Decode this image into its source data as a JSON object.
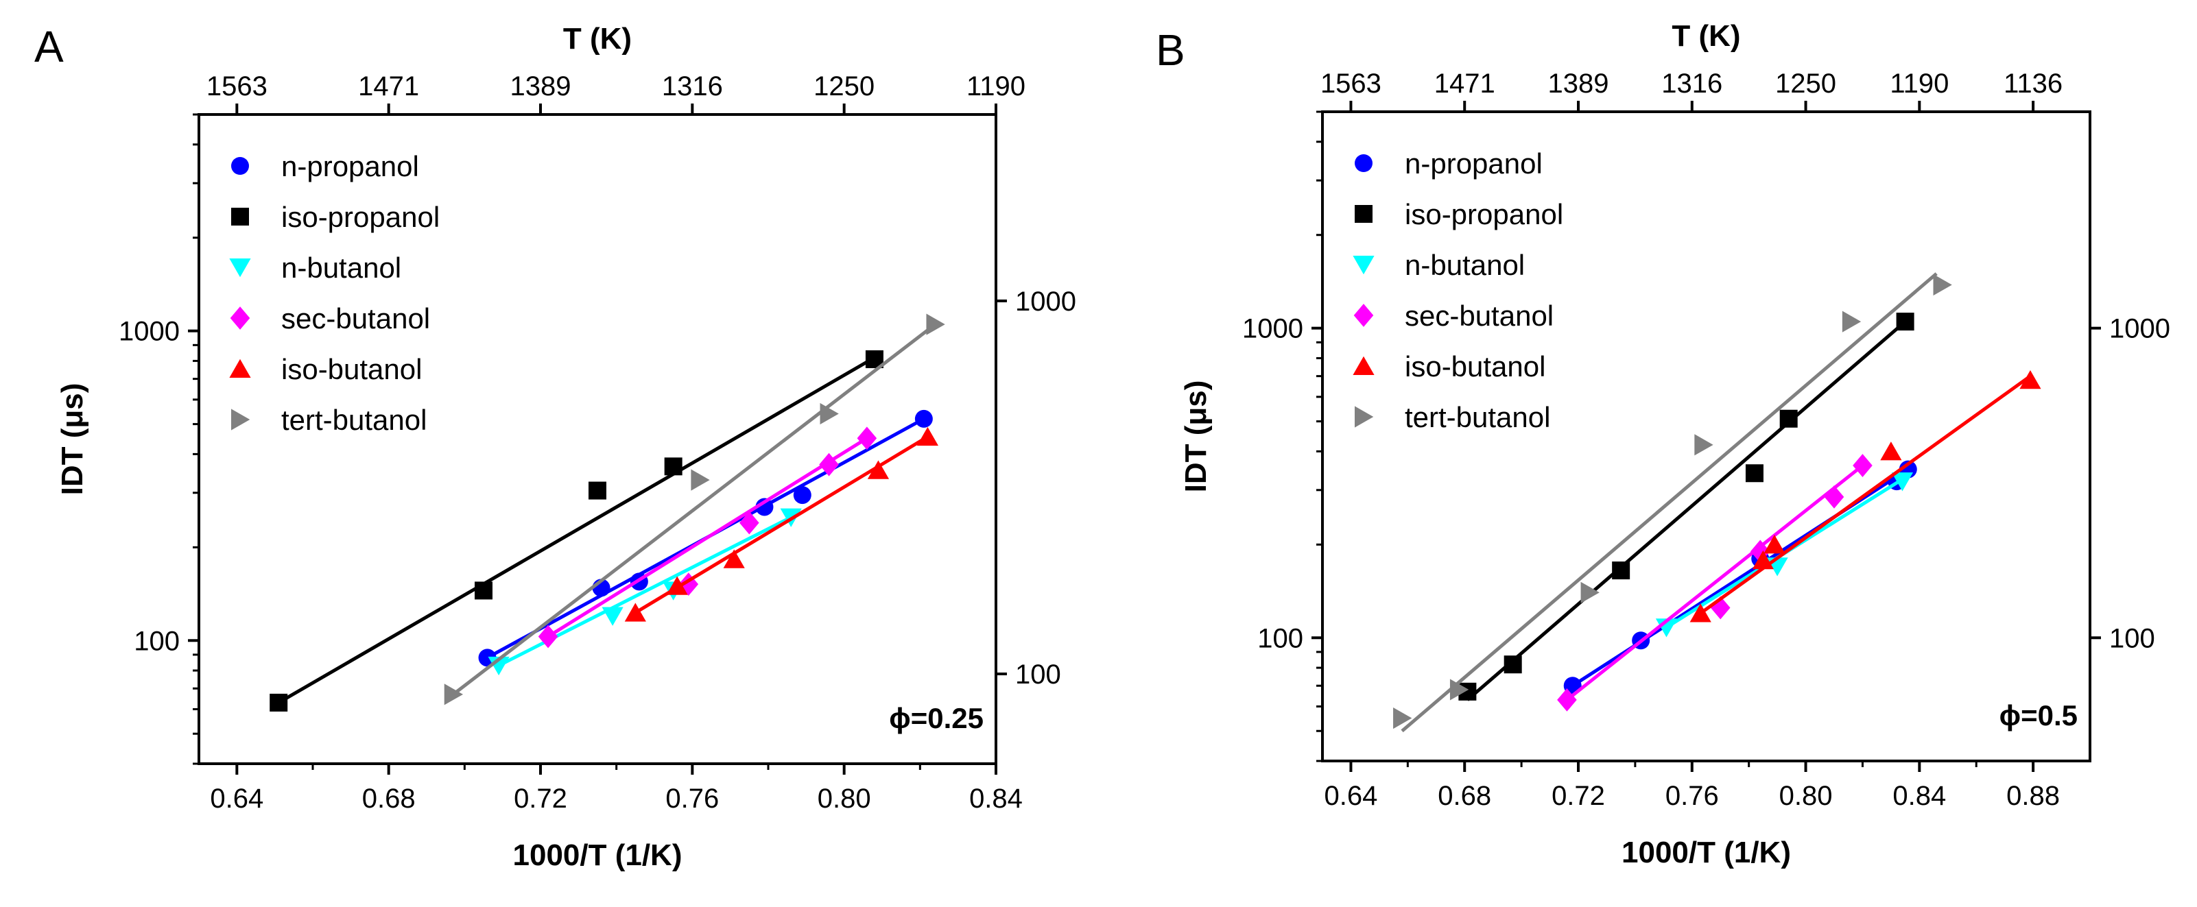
{
  "colors": {
    "n-propanol": "#0000ff",
    "iso-propanol": "#000000",
    "n-butanol": "#00ffff",
    "sec-butanol": "#ff00ff",
    "iso-butanol": "#ff0000",
    "tert-butanol": "#808080"
  },
  "chart_data": [
    {
      "type": "scatter",
      "panel_label": "A",
      "phi_label": "ϕ=0.25",
      "xlabel": "1000/T (1/K)",
      "ylabel": "IDT (μs)",
      "top_xlabel": "T (K)",
      "xlim": [
        0.63,
        0.84
      ],
      "ylim": [
        40,
        5000
      ],
      "yscale": "log",
      "x_ticks": [
        "0.64",
        "0.68",
        "0.72",
        "0.76",
        "0.80",
        "0.84"
      ],
      "x_tick_values": [
        0.64,
        0.68,
        0.72,
        0.76,
        0.8,
        0.84
      ],
      "y_ticks": [
        "100",
        "1000"
      ],
      "y_tick_values": [
        100,
        1000
      ],
      "top_ticks": [
        "1563",
        "1471",
        "1389",
        "1316",
        "1250",
        "1190"
      ],
      "top_tick_values": [
        0.64,
        0.68,
        0.72,
        0.76,
        0.8,
        0.84
      ],
      "right_ticks": [
        "100",
        "1000"
      ],
      "right_tick_values": [
        78,
        1250
      ],
      "legend_position": "top-left",
      "series": [
        {
          "name": "n-propanol",
          "marker": "circle",
          "x": [
            0.706,
            0.736,
            0.746,
            0.779,
            0.789,
            0.821
          ],
          "y": [
            88,
            148,
            155,
            270,
            295,
            520
          ],
          "fit": [
            [
              0.706,
              88
            ],
            [
              0.821,
              520
            ]
          ]
        },
        {
          "name": "iso-propanol",
          "marker": "square",
          "x": [
            0.651,
            0.705,
            0.735,
            0.755,
            0.808
          ],
          "y": [
            63,
            145,
            305,
            365,
            810
          ],
          "fit": [
            [
              0.651,
              63
            ],
            [
              0.808,
              820
            ]
          ]
        },
        {
          "name": "n-butanol",
          "marker": "triangle-down",
          "x": [
            0.709,
            0.739,
            0.755,
            0.786
          ],
          "y": [
            83,
            120,
            145,
            250
          ],
          "fit": [
            [
              0.709,
              83
            ],
            [
              0.786,
              250
            ]
          ]
        },
        {
          "name": "sec-butanol",
          "marker": "diamond",
          "x": [
            0.722,
            0.759,
            0.775,
            0.796,
            0.806
          ],
          "y": [
            103,
            152,
            240,
            370,
            450
          ],
          "fit": [
            [
              0.722,
              103
            ],
            [
              0.806,
              450
            ]
          ]
        },
        {
          "name": "iso-butanol",
          "marker": "triangle-up",
          "x": [
            0.745,
            0.756,
            0.771,
            0.809,
            0.822
          ],
          "y": [
            123,
            150,
            183,
            355,
            455
          ],
          "fit": [
            [
              0.745,
              123
            ],
            [
              0.822,
              455
            ]
          ]
        },
        {
          "name": "tert-butanol",
          "marker": "triangle-right",
          "x": [
            0.697,
            0.762,
            0.796,
            0.824
          ],
          "y": [
            67,
            330,
            540,
            1050
          ],
          "fit": [
            [
              0.697,
              67
            ],
            [
              0.824,
              1050
            ]
          ]
        }
      ]
    },
    {
      "type": "scatter",
      "panel_label": "B",
      "phi_label": "ϕ=0.5",
      "xlabel": "1000/T (1/K)",
      "ylabel": "IDT (μs)",
      "top_xlabel": "T (K)",
      "xlim": [
        0.63,
        0.9
      ],
      "ylim": [
        40,
        5000
      ],
      "yscale": "log",
      "x_ticks": [
        "0.64",
        "0.68",
        "0.72",
        "0.76",
        "0.80",
        "0.84",
        "0.88"
      ],
      "x_tick_values": [
        0.64,
        0.68,
        0.72,
        0.76,
        0.8,
        0.84,
        0.88
      ],
      "y_ticks": [
        "100",
        "1000"
      ],
      "y_tick_values": [
        100,
        1000
      ],
      "top_ticks": [
        "1563",
        "1471",
        "1389",
        "1316",
        "1250",
        "1190",
        "1136"
      ],
      "top_tick_values": [
        0.64,
        0.68,
        0.72,
        0.76,
        0.8,
        0.84,
        0.88
      ],
      "right_ticks": [
        "100",
        "1000"
      ],
      "right_tick_values": [
        100,
        1000
      ],
      "legend_position": "top-left",
      "series": [
        {
          "name": "n-propanol",
          "marker": "circle",
          "x": [
            0.718,
            0.742,
            0.784,
            0.832,
            0.836
          ],
          "y": [
            70,
            98,
            180,
            320,
            350
          ],
          "fit": [
            [
              0.718,
              70
            ],
            [
              0.836,
              350
            ]
          ]
        },
        {
          "name": "iso-propanol",
          "marker": "square",
          "x": [
            0.681,
            0.697,
            0.735,
            0.782,
            0.794,
            0.835
          ],
          "y": [
            67,
            82,
            165,
            340,
            510,
            1050
          ],
          "fit": [
            [
              0.681,
              63
            ],
            [
              0.835,
              1050
            ]
          ]
        },
        {
          "name": "n-butanol",
          "marker": "triangle-down",
          "x": [
            0.751,
            0.79,
            0.834
          ],
          "y": [
            108,
            170,
            320
          ],
          "fit": [
            [
              0.751,
              108
            ],
            [
              0.834,
              325
            ]
          ]
        },
        {
          "name": "sec-butanol",
          "marker": "diamond",
          "x": [
            0.716,
            0.77,
            0.784,
            0.81,
            0.82
          ],
          "y": [
            63,
            125,
            190,
            285,
            360
          ],
          "fit": [
            [
              0.716,
              63
            ],
            [
              0.82,
              360
            ]
          ]
        },
        {
          "name": "iso-butanol",
          "marker": "triangle-up",
          "x": [
            0.763,
            0.785,
            0.789,
            0.83,
            0.879
          ],
          "y": [
            120,
            178,
            200,
            400,
            680
          ],
          "fit": [
            [
              0.763,
              120
            ],
            [
              0.879,
              700
            ]
          ]
        },
        {
          "name": "tert-butanol",
          "marker": "triangle-right",
          "x": [
            0.658,
            0.678,
            0.724,
            0.764,
            0.816,
            0.848
          ],
          "y": [
            55,
            68,
            140,
            420,
            1050,
            1380
          ],
          "fit": [
            [
              0.658,
              50
            ],
            [
              0.846,
              1500
            ]
          ]
        }
      ]
    }
  ]
}
